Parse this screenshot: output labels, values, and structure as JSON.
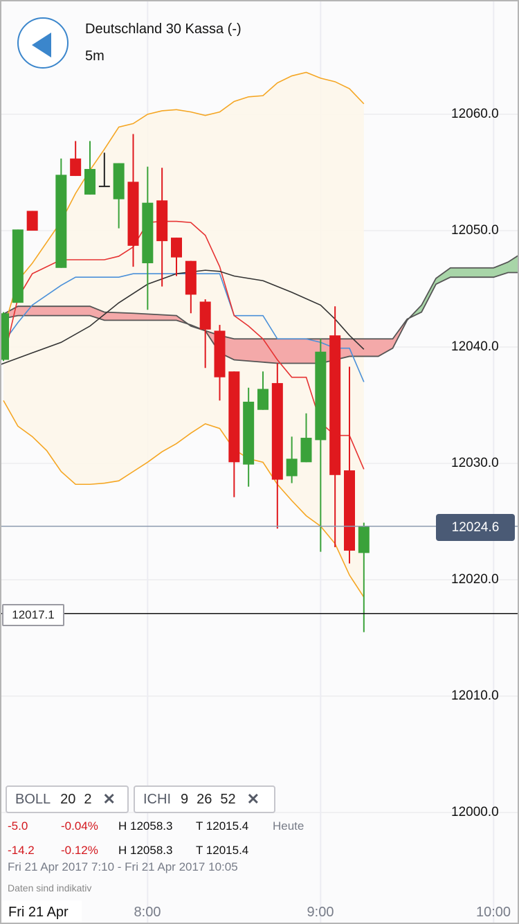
{
  "header": {
    "title": "Deutschland 30 Kassa (-)",
    "interval": "5m",
    "back_icon": "back-triangle-icon"
  },
  "colors": {
    "up": "#3aa23a",
    "down": "#e0191e",
    "bollinger": "#f5a623",
    "tenkan": "#e63232",
    "kijun": "#4a90d9",
    "chikou": "#333333",
    "cloud_bear": "#f4a9a9",
    "cloud_bull": "#a8d5a8",
    "accent": "#3b86cc",
    "price_tag": "#4a5a75"
  },
  "axis": {
    "y_labels": [
      "12060.0",
      "12050.0",
      "12040.0",
      "12030.0",
      "12020.0",
      "12010.0",
      "12000.0"
    ],
    "date_label": "Fri 21 Apr",
    "x_labels": [
      "8:00",
      "9:00",
      "10:00"
    ]
  },
  "markers": {
    "current_price": "12024.6",
    "reference_price": "12017.1"
  },
  "indicators": [
    {
      "name": "BOLL",
      "params": [
        "20",
        "2"
      ],
      "remove_icon": "close-icon"
    },
    {
      "name": "ICHI",
      "params": [
        "9",
        "26",
        "52"
      ],
      "remove_icon": "close-icon"
    }
  ],
  "stats": [
    {
      "change": "-5.0",
      "change_pct": "-0.04%",
      "high": "H 12058.3",
      "low": "T 12015.4",
      "period": "Heute"
    },
    {
      "change": "-14.2",
      "change_pct": "-0.12%",
      "high": "H 12058.3",
      "low": "T 12015.4"
    }
  ],
  "range": "Fri 21 Apr 2017 7:10 - Fri 21 Apr 2017 10:05",
  "disclaimer": "Daten sind indikativ",
  "chart_data": {
    "type": "candlestick",
    "ylim": [
      11992,
      12070
    ],
    "xlim": [
      "7:09",
      "10:10"
    ],
    "grid": true,
    "candles": [
      [
        "7:10",
        12038.9,
        12043.0,
        12038.8,
        12042.9
      ],
      [
        "7:15",
        12043.8,
        12050.1,
        12043.8,
        12050.1
      ],
      [
        "7:20",
        12051.7,
        12051.7,
        12050.0,
        12050.0
      ],
      [
        "7:30",
        12046.8,
        12056.2,
        12046.8,
        12054.8
      ],
      [
        "7:35",
        12056.2,
        12057.7,
        12054.7,
        12054.7
      ],
      [
        "7:40",
        12053.1,
        12057.7,
        12053.1,
        12055.3
      ],
      [
        "7:45",
        12053.8,
        12056.7,
        12053.8,
        12053.8
      ],
      [
        "7:50",
        12052.7,
        12055.8,
        12050.2,
        12055.8
      ],
      [
        "7:55",
        12054.2,
        12058.3,
        12046.9,
        12048.7
      ],
      [
        "8:00",
        12047.2,
        12055.5,
        12043.2,
        12052.4
      ],
      [
        "8:05",
        12052.6,
        12055.4,
        12045.2,
        12049.1
      ],
      [
        "8:10",
        12049.4,
        12049.4,
        12046.1,
        12047.7
      ],
      [
        "8:15",
        12047.4,
        12047.4,
        12042.9,
        12044.5
      ],
      [
        "8:20",
        12043.9,
        12044.1,
        12038.2,
        12041.5
      ],
      [
        "8:25",
        12041.4,
        12041.9,
        12035.4,
        12037.4
      ],
      [
        "8:30",
        12037.9,
        12037.9,
        12027.1,
        12030.1
      ],
      [
        "8:35",
        12029.9,
        12036.5,
        12028.0,
        12035.3
      ],
      [
        "8:40",
        12034.6,
        12037.9,
        12034.6,
        12036.4
      ],
      [
        "8:45",
        12036.9,
        12038.6,
        12024.4,
        12028.6
      ],
      [
        "8:50",
        12028.9,
        12032.3,
        12028.3,
        12030.4
      ],
      [
        "8:55",
        12030.1,
        12034.3,
        12030.1,
        12032.2
      ],
      [
        "9:00",
        12032.0,
        12040.7,
        12022.4,
        12039.6
      ],
      [
        "9:05",
        12041.0,
        12043.5,
        12022.8,
        12029.0
      ],
      [
        "9:10",
        12029.4,
        12038.3,
        12021.4,
        12022.5
      ],
      [
        "9:15",
        12022.3,
        12024.9,
        12015.5,
        12024.6
      ]
    ],
    "bollinger_upper": [
      [
        "7:10",
        12041.5
      ],
      [
        "7:15",
        12045.7
      ],
      [
        "7:20",
        12047.2
      ],
      [
        "7:30",
        12050.8
      ],
      [
        "7:35",
        12053.2
      ],
      [
        "7:40",
        12055.2
      ],
      [
        "7:45",
        12057.0
      ],
      [
        "7:50",
        12058.9
      ],
      [
        "7:55",
        12059.2
      ],
      [
        "8:00",
        12060.0
      ],
      [
        "8:05",
        12060.3
      ],
      [
        "8:10",
        12060.4
      ],
      [
        "8:15",
        12060.2
      ],
      [
        "8:20",
        12059.9
      ],
      [
        "8:25",
        12060.2
      ],
      [
        "8:30",
        12061.1
      ],
      [
        "8:35",
        12061.5
      ],
      [
        "8:40",
        12061.6
      ],
      [
        "8:45",
        12062.7
      ],
      [
        "8:50",
        12063.3
      ],
      [
        "8:55",
        12063.6
      ],
      [
        "9:00",
        12063.1
      ],
      [
        "9:05",
        12062.8
      ],
      [
        "9:10",
        12062.2
      ],
      [
        "9:15",
        12060.9
      ]
    ],
    "bollinger_lower": [
      [
        "7:10",
        12035.4
      ],
      [
        "7:15",
        12033.2
      ],
      [
        "7:20",
        12032.3
      ],
      [
        "7:25",
        12031.1
      ],
      [
        "7:30",
        12029.3
      ],
      [
        "7:35",
        12028.2
      ],
      [
        "7:40",
        12028.2
      ],
      [
        "7:45",
        12028.3
      ],
      [
        "7:50",
        12028.5
      ],
      [
        "7:55",
        12029.3
      ],
      [
        "8:00",
        12030.1
      ],
      [
        "8:05",
        12031.0
      ],
      [
        "8:10",
        12031.7
      ],
      [
        "8:15",
        12032.6
      ],
      [
        "8:20",
        12033.4
      ],
      [
        "8:25",
        12033.0
      ],
      [
        "8:30",
        12031.2
      ],
      [
        "8:35",
        12030.4
      ],
      [
        "8:40",
        12030.1
      ],
      [
        "8:45",
        12028.2
      ],
      [
        "8:50",
        12026.8
      ],
      [
        "8:55",
        12025.5
      ],
      [
        "9:00",
        12024.6
      ],
      [
        "9:05",
        12023.1
      ],
      [
        "9:10",
        12020.4
      ],
      [
        "9:15",
        12018.5
      ]
    ],
    "tenkan": [
      [
        "7:10",
        12038.9
      ],
      [
        "7:15",
        12044.2
      ],
      [
        "7:20",
        12046.3
      ],
      [
        "7:30",
        12047.5
      ],
      [
        "7:35",
        12047.5
      ],
      [
        "7:45",
        12047.5
      ],
      [
        "7:50",
        12047.8
      ],
      [
        "7:55",
        12048.6
      ],
      [
        "8:00",
        12050.7
      ],
      [
        "8:05",
        12050.8
      ],
      [
        "8:10",
        12050.8
      ],
      [
        "8:15",
        12050.7
      ],
      [
        "8:20",
        12049.6
      ],
      [
        "8:25",
        12046.9
      ],
      [
        "8:30",
        12042.7
      ],
      [
        "8:35",
        12041.8
      ],
      [
        "8:40",
        12040.7
      ],
      [
        "8:45",
        12038.9
      ],
      [
        "8:50",
        12037.4
      ],
      [
        "8:55",
        12037.4
      ],
      [
        "9:00",
        12033.5
      ],
      [
        "9:05",
        12032.4
      ],
      [
        "9:10",
        12032.4
      ],
      [
        "9:15",
        12029.5
      ]
    ],
    "kijun": [
      [
        "7:10",
        12040.4
      ],
      [
        "7:15",
        12042.1
      ],
      [
        "7:20",
        12043.6
      ],
      [
        "7:30",
        12045.3
      ],
      [
        "7:35",
        12046.0
      ],
      [
        "7:50",
        12046.0
      ],
      [
        "7:55",
        12046.3
      ],
      [
        "8:00",
        12046.3
      ],
      [
        "8:25",
        12046.3
      ],
      [
        "8:30",
        12042.7
      ],
      [
        "8:35",
        12042.7
      ],
      [
        "8:40",
        12042.7
      ],
      [
        "8:45",
        12040.7
      ],
      [
        "8:50",
        12040.7
      ],
      [
        "8:55",
        12040.7
      ],
      [
        "9:00",
        12040.4
      ],
      [
        "9:05",
        12039.9
      ],
      [
        "9:10",
        12039.9
      ],
      [
        "9:15",
        12037.0
      ]
    ],
    "chikou": [
      [
        "7:09",
        12038.5
      ],
      [
        "7:20",
        12039.5
      ],
      [
        "7:30",
        12040.4
      ],
      [
        "7:40",
        12041.8
      ],
      [
        "7:50",
        12043.8
      ],
      [
        "8:00",
        12045.4
      ],
      [
        "8:10",
        12046.3
      ],
      [
        "8:20",
        12046.6
      ],
      [
        "8:25",
        12046.5
      ],
      [
        "8:30",
        12046.1
      ],
      [
        "8:40",
        12045.7
      ],
      [
        "8:50",
        12044.7
      ],
      [
        "9:00",
        12043.6
      ],
      [
        "9:05",
        12042.4
      ],
      [
        "9:10",
        12041.0
      ],
      [
        "9:15",
        12039.8
      ]
    ],
    "cloud_times": [
      "7:09",
      "7:15",
      "7:40",
      "7:45",
      "7:55",
      "8:10",
      "8:15",
      "8:20",
      "8:25",
      "8:30",
      "8:45",
      "9:00",
      "9:05",
      "9:10",
      "9:20",
      "9:25",
      "9:30",
      "9:35",
      "9:40",
      "9:45",
      "10:00",
      "10:05",
      "10:10"
    ],
    "senkou_a": [
      12042.4,
      12042.7,
      12042.7,
      12042.3,
      12042.3,
      12042.3,
      12041.9,
      12041.4,
      12039.5,
      12038.9,
      12038.6,
      12038.6,
      12038.9,
      12039.2,
      12039.2,
      12039.9,
      12042.3,
      12043.6,
      12045.9,
      12046.8,
      12046.8,
      12047.3,
      12048.1
    ],
    "senkou_b": [
      12042.7,
      12043.5,
      12043.5,
      12043.0,
      12042.9,
      12042.7,
      12041.8,
      12041.4,
      12041.0,
      12040.7,
      12040.7,
      12040.7,
      12040.7,
      12040.7,
      12040.7,
      12040.7,
      12042.4,
      12043.0,
      12045.4,
      12046.0,
      12046.0,
      12046.4,
      12046.4
    ]
  }
}
